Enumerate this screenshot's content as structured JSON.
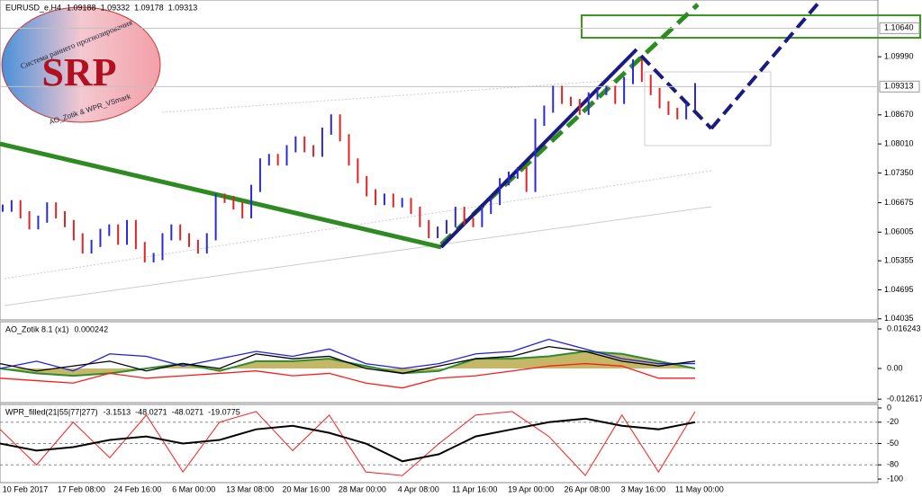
{
  "logo": {
    "text": "SRP",
    "subtitle": "Система раннего прогнозирования",
    "credit": "AO_Zotik & WPR_VSmark"
  },
  "chart_data": [
    {
      "type": "bar",
      "title": "EURUSD_e,H4",
      "quote": [
        1.09188,
        1.09332,
        1.09178,
        1.09313
      ],
      "up_color": "#2b2bd6",
      "down_color": "#e02424",
      "values": [
        1.0655,
        1.0665,
        1.064,
        1.0615,
        1.063,
        1.066,
        1.064,
        1.062,
        1.059,
        1.056,
        1.0575,
        1.06,
        1.061,
        1.058,
        1.062,
        1.057,
        1.054,
        1.0545,
        1.059,
        1.061,
        1.059,
        1.0575,
        1.056,
        1.059,
        1.068,
        1.0675,
        1.066,
        1.064,
        1.07,
        1.076,
        1.077,
        1.076,
        1.079,
        1.081,
        1.079,
        1.078,
        1.083,
        1.086,
        1.0815,
        1.076,
        1.072,
        1.069,
        1.067,
        1.068,
        1.0665,
        1.067,
        1.065,
        1.062,
        1.0595,
        1.0605,
        1.062,
        1.065,
        1.0625,
        1.062,
        1.065,
        1.067,
        1.0715,
        1.073,
        1.074,
        1.07,
        1.085,
        1.088,
        1.0925,
        1.09,
        1.0895,
        1.0875,
        1.091,
        1.092,
        1.0925,
        1.09,
        1.0945,
        1.0985,
        1.095,
        1.092,
        1.089,
        1.0875,
        1.0865,
        1.0885,
        1.0931
      ],
      "ylim": [
        1.0401,
        1.1128
      ],
      "yticks": [
        {
          "value": 1.0999,
          "label": "1.09990"
        },
        {
          "value": 1.0867,
          "label": "1.08670"
        },
        {
          "value": 1.0801,
          "label": "1.08010"
        },
        {
          "value": 1.0735,
          "label": "1.07350"
        },
        1.06675,
        1.06005,
        1.05355,
        1.04695,
        1.04035
      ],
      "levels": [
        {
          "value": 1.1064,
          "label": "1.10640"
        },
        1.09313
      ],
      "x_labels": [
        "10 Feb 2017",
        "17 Feb 08:00",
        "24 Feb 16:00",
        "6 Mar 00:00",
        "13 Mar 08:00",
        "20 Mar 16:00",
        "28 Mar 00:00",
        "4 Apr 08:00",
        "11 Apr 16:00",
        "19 Apr 00:00",
        "26 Apr 08:00",
        "3 May 16:00",
        "11 May 00:00"
      ]
    },
    {
      "type": "line",
      "title": "AO_Zotik 8.1 (x1)",
      "quote": [
        0.000242
      ],
      "ylim": [
        -0.01403,
        0.0192
      ],
      "yticks": [
        0.016243,
        {
          "value": 0,
          "label": "0.00"
        },
        -0.012617
      ],
      "area": {
        "color": "#b5a642",
        "line": "#2e8b2e",
        "values": [
          0,
          -0.002,
          -0.003,
          -0.002,
          0,
          0.002,
          -0.001,
          0.003,
          0.003,
          0.004,
          0.001,
          -0.002,
          -0.001,
          0.004,
          0.004,
          0.005,
          0.007,
          0.006,
          0.003,
          0
        ]
      },
      "series": [
        {
          "color": "#1f1fe0",
          "values": [
            0,
            0.003,
            -0.001,
            0.006,
            0.005,
            0.001,
            0.004,
            0.007,
            0.005,
            0.008,
            0.002,
            0,
            0.002,
            0.006,
            0.007,
            0.012,
            0.008,
            0.004,
            0.002,
            0.002
          ]
        },
        {
          "color": "#ff1a1a",
          "values": [
            -0.004,
            -0.005,
            -0.006,
            -0.002,
            -0.004,
            -0.003,
            -0.002,
            -0.001,
            -0.003,
            -0.002,
            -0.006,
            -0.008,
            -0.004,
            -0.003,
            -0.001,
            0.001,
            0.002,
            0.001,
            -0.004,
            -0.004
          ]
        },
        {
          "color": "#000000",
          "values": [
            0.002,
            -0.001,
            0.001,
            0.003,
            -0.001,
            0.002,
            0,
            0.006,
            0.004,
            0.005,
            0,
            -0.002,
            0.001,
            0.004,
            0.005,
            0.009,
            0.007,
            0.003,
            0.001,
            0.003
          ]
        }
      ]
    },
    {
      "type": "line",
      "title": "WPR_filled(21|55|77|277)",
      "quote": [
        -3.1513,
        -48.0271,
        -48.0271,
        -19.0775
      ],
      "ylim": [
        -105,
        5
      ],
      "yticks": [
        0,
        -20,
        -50,
        -80,
        -100
      ],
      "grid_ticks": [
        -20,
        -50,
        -80
      ],
      "series": [
        {
          "color": "#ff1a1a",
          "width": 1,
          "values": [
            -30,
            -80,
            -20,
            -70,
            -10,
            -90,
            -20,
            -5,
            -60,
            -10,
            -90,
            -95,
            -50,
            -10,
            -5,
            -40,
            -95,
            -10,
            -90,
            -5
          ]
        },
        {
          "color": "#000000",
          "width": 2,
          "values": [
            -50,
            -60,
            -55,
            -45,
            -40,
            -50,
            -45,
            -30,
            -25,
            -35,
            -50,
            -75,
            -65,
            -40,
            -30,
            -20,
            -15,
            -25,
            -30,
            -20
          ]
        }
      ]
    }
  ]
}
